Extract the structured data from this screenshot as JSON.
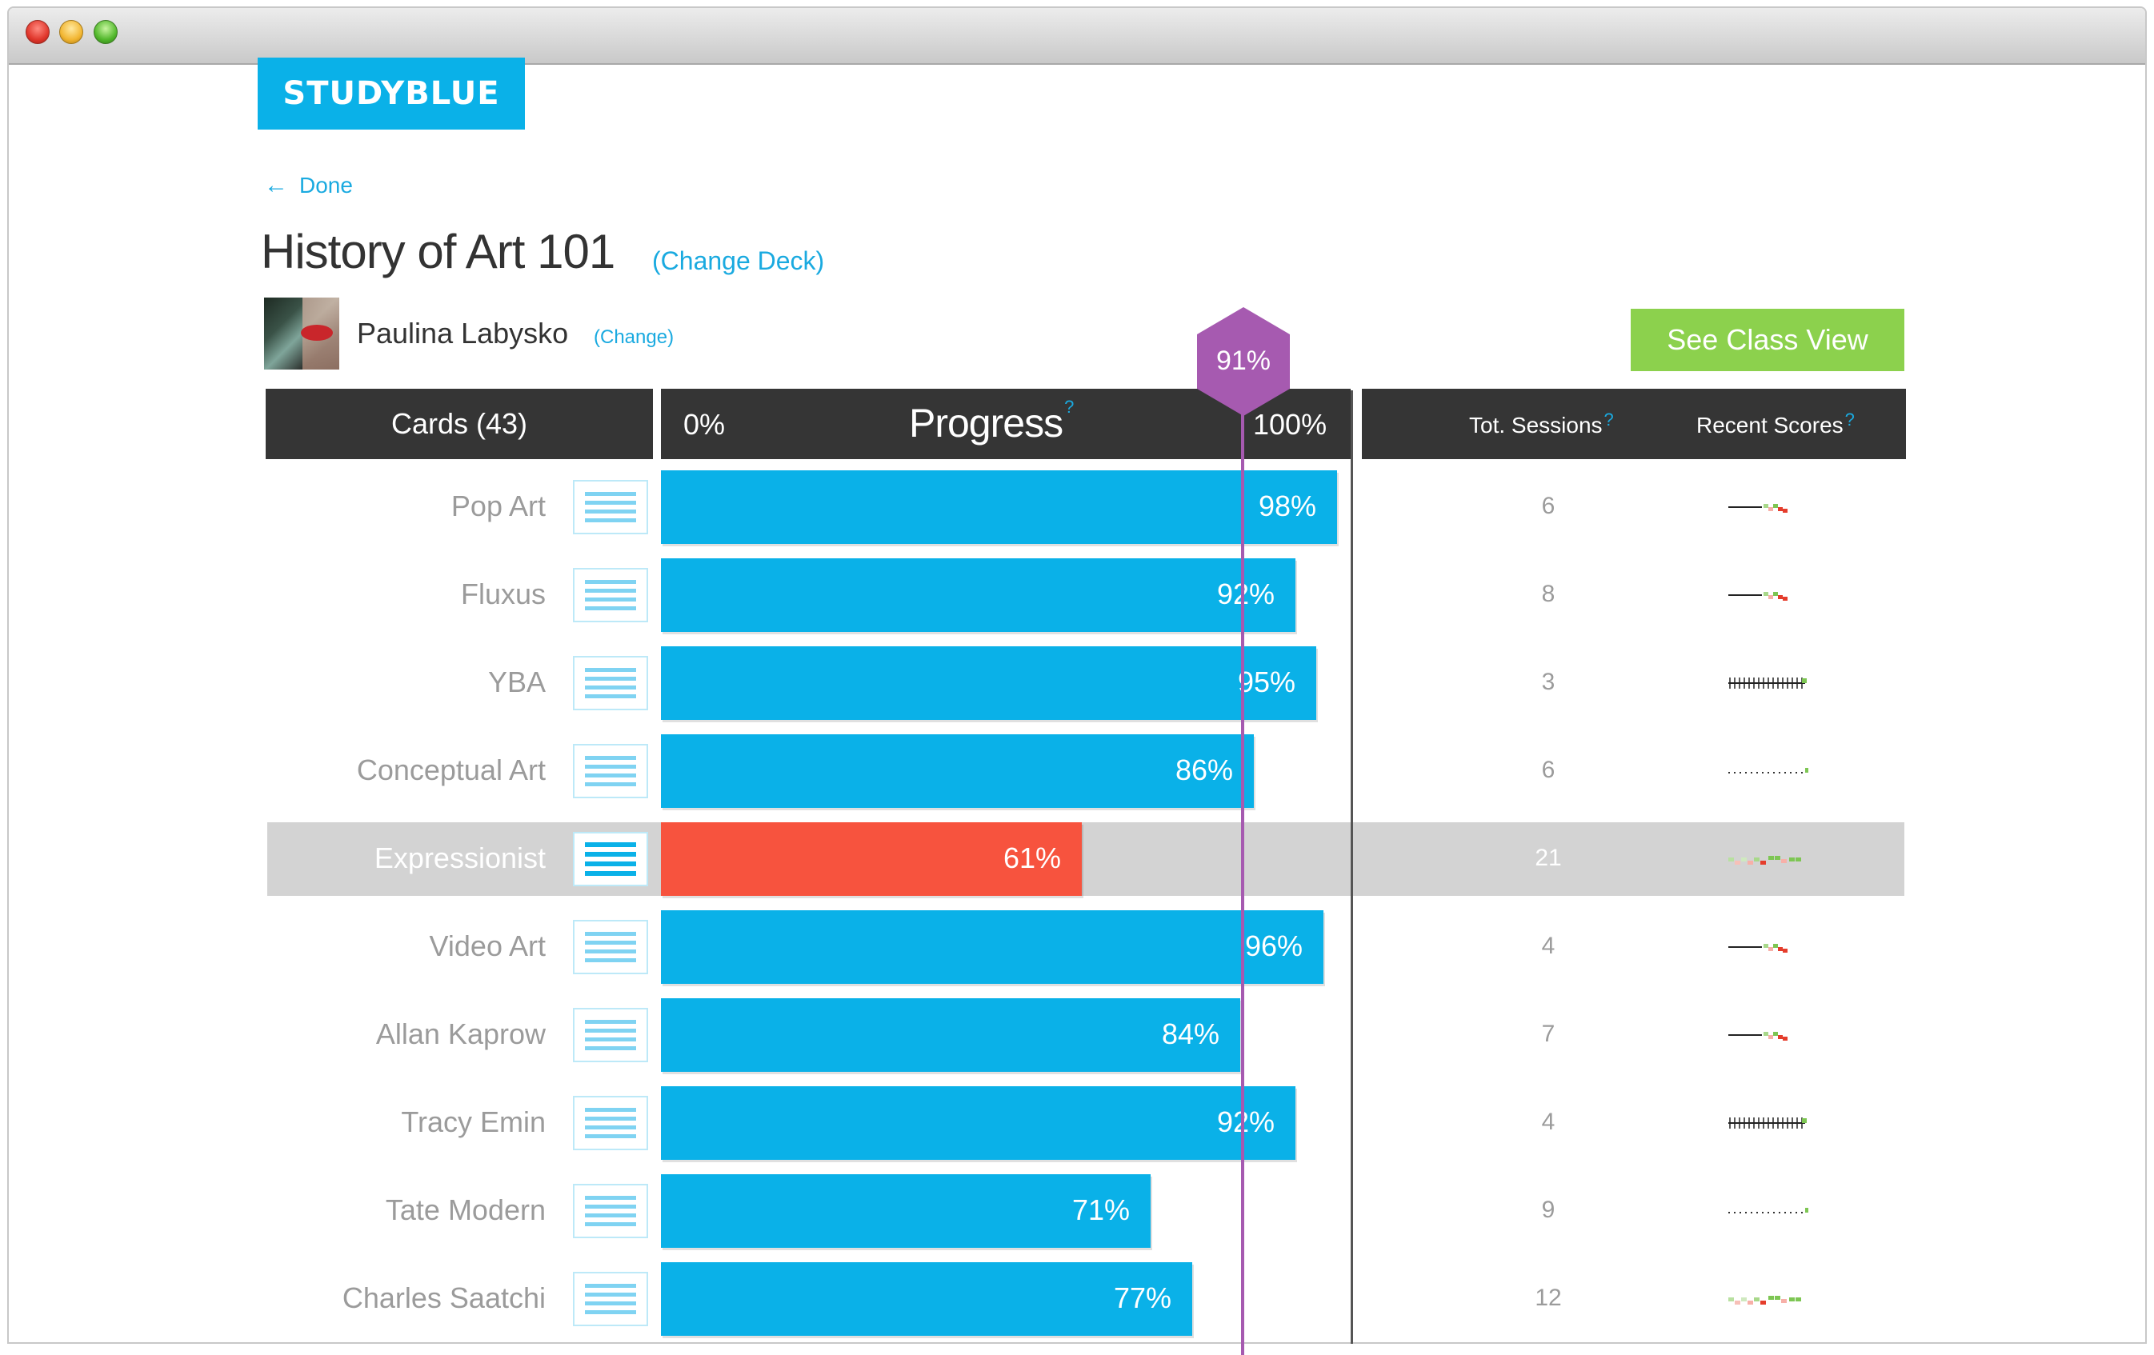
{
  "app": {
    "logo": "STUDYBLUE"
  },
  "nav": {
    "done_label": "Done"
  },
  "deck": {
    "title": "History of Art 101",
    "change_label": "(Change Deck)"
  },
  "student": {
    "name": "Paulina Labysko",
    "change_label": "(Change)"
  },
  "actions": {
    "class_view_label": "See Class View"
  },
  "table": {
    "cards_header": "Cards (43)",
    "progress_min": "0%",
    "progress_title": "Progress",
    "progress_max": "100%",
    "help_mark": "?",
    "sessions_header": "Tot. Sessions",
    "recent_header": "Recent Scores"
  },
  "average": {
    "label": "91%",
    "value": 91,
    "color": "#a65ab0"
  },
  "colors": {
    "accent": "#0ab1e8",
    "alert": "#f7533e",
    "action": "#8cd14d",
    "header": "#353535"
  },
  "rows": [
    {
      "card": "Pop Art",
      "progress": 98,
      "progress_label": "98%",
      "sessions": "6",
      "spark": "line-mixed",
      "highlight": false
    },
    {
      "card": "Fluxus",
      "progress": 92,
      "progress_label": "92%",
      "sessions": "8",
      "spark": "line-mixed",
      "highlight": false
    },
    {
      "card": "YBA",
      "progress": 95,
      "progress_label": "95%",
      "sessions": "3",
      "spark": "ticks",
      "highlight": false
    },
    {
      "card": "Conceptual Art",
      "progress": 86,
      "progress_label": "86%",
      "sessions": "6",
      "spark": "dots",
      "highlight": false
    },
    {
      "card": "Expressionist",
      "progress": 61,
      "progress_label": "61%",
      "sessions": "21",
      "spark": "scatter",
      "highlight": true
    },
    {
      "card": "Video Art",
      "progress": 96,
      "progress_label": "96%",
      "sessions": "4",
      "spark": "line-mixed",
      "highlight": false
    },
    {
      "card": "Allan Kaprow",
      "progress": 84,
      "progress_label": "84%",
      "sessions": "7",
      "spark": "line-mixed",
      "highlight": false
    },
    {
      "card": "Tracy Emin",
      "progress": 92,
      "progress_label": "92%",
      "sessions": "4",
      "spark": "ticks",
      "highlight": false
    },
    {
      "card": "Tate Modern",
      "progress": 71,
      "progress_label": "71%",
      "sessions": "9",
      "spark": "dots",
      "highlight": false
    },
    {
      "card": "Charles Saatchi",
      "progress": 77,
      "progress_label": "77%",
      "sessions": "12",
      "spark": "scatter",
      "highlight": false
    }
  ]
}
